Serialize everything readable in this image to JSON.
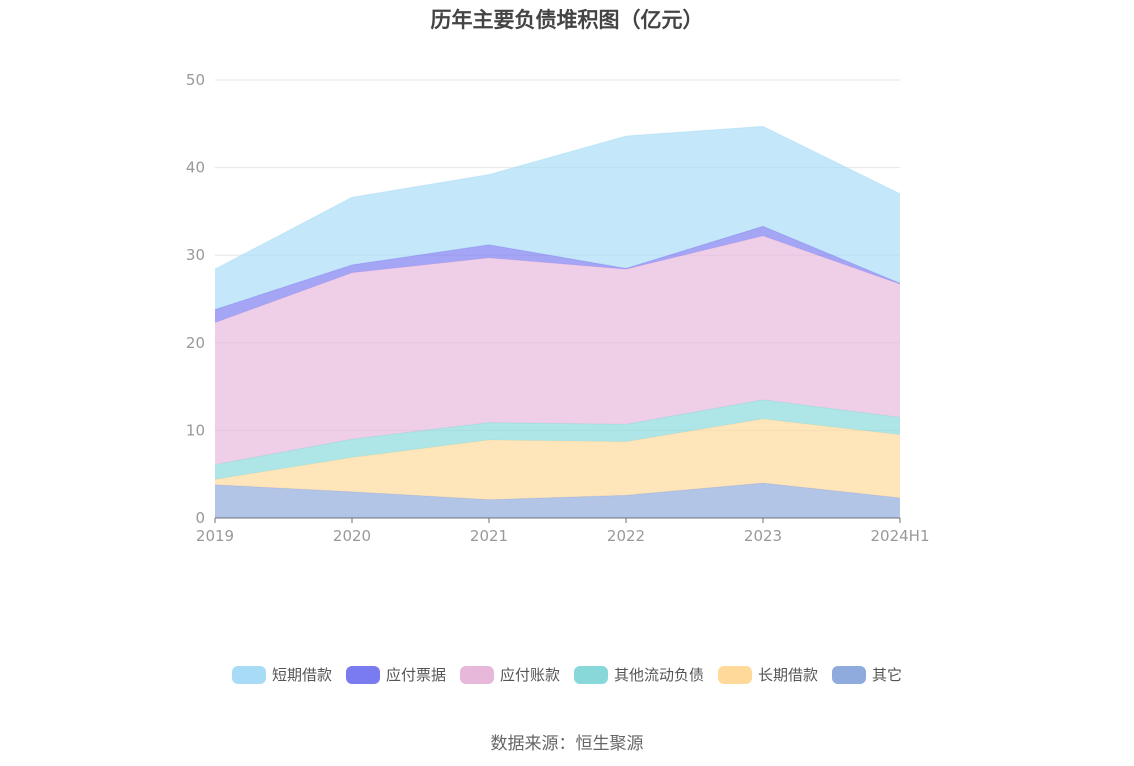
{
  "chart_data": {
    "type": "area",
    "stacked": true,
    "title": "历年主要负债堆积图（亿元）",
    "xlabel": "",
    "ylabel": "",
    "categories": [
      "2019",
      "2020",
      "2021",
      "2022",
      "2023",
      "2024H1"
    ],
    "ylim": [
      0,
      50
    ],
    "yticks": [
      0,
      10,
      20,
      30,
      40,
      50
    ],
    "grid": true,
    "legend_position": "bottom",
    "series": [
      {
        "name": "其它",
        "color": "#8faadc",
        "values": [
          3.8,
          3.0,
          2.1,
          2.6,
          4.0,
          2.3
        ]
      },
      {
        "name": "长期借款",
        "color": "#ffd99a",
        "values": [
          0.6,
          3.9,
          6.8,
          6.1,
          7.3,
          7.2
        ]
      },
      {
        "name": "其他流动负债",
        "color": "#88d8da",
        "values": [
          1.7,
          2.1,
          2.0,
          2.0,
          2.2,
          2.0
        ]
      },
      {
        "name": "应付账款",
        "color": "#e8b8db",
        "values": [
          16.2,
          19.0,
          18.8,
          17.7,
          18.7,
          15.2
        ]
      },
      {
        "name": "应付票据",
        "color": "#7b7bf0",
        "values": [
          1.5,
          0.9,
          1.5,
          0.1,
          1.1,
          0.1
        ]
      },
      {
        "name": "短期借款",
        "color": "#a8dcf6",
        "values": [
          4.6,
          7.7,
          8.0,
          15.1,
          11.4,
          10.2
        ]
      }
    ]
  },
  "legend": [
    {
      "label": "短期借款",
      "color": "#a8dcf6"
    },
    {
      "label": "应付票据",
      "color": "#7b7bf0"
    },
    {
      "label": "应付账款",
      "color": "#e8b8db"
    },
    {
      "label": "其他流动负债",
      "color": "#88d8da"
    },
    {
      "label": "长期借款",
      "color": "#ffd99a"
    },
    {
      "label": "其它",
      "color": "#8faadc"
    }
  ],
  "source_note": "数据来源：恒生聚源"
}
